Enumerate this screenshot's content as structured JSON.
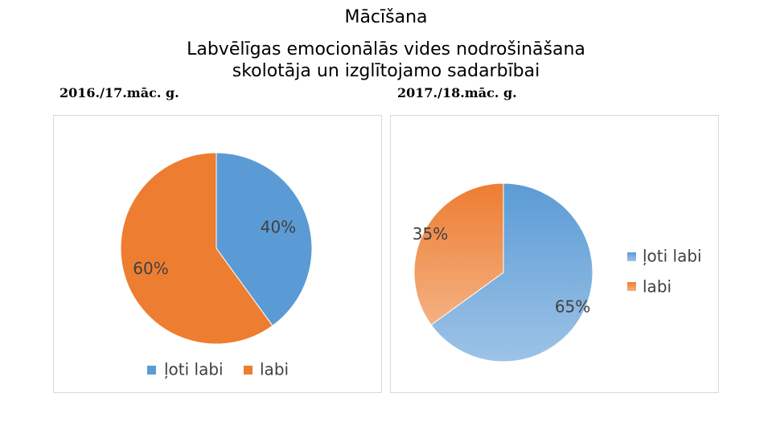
{
  "header": {
    "title": "Mācīšana",
    "subtitle": "Labvēlīgas emocionālās vides nodrošināšana skolotāja un izglītojamo sadarbībai"
  },
  "colors": {
    "blue": "#5b9bd5",
    "orange": "#ed7d31",
    "blue_light": "#9dc3e6",
    "orange_light": "#f4b183"
  },
  "chart_data": [
    {
      "type": "pie",
      "title": "2016./17.māc. g.",
      "categories": [
        "ļoti labi",
        "labi"
      ],
      "values": [
        40,
        60
      ],
      "labels": [
        "40%",
        "60%"
      ],
      "legend_position": "bottom"
    },
    {
      "type": "pie",
      "title": "2017./18.māc. g.",
      "categories": [
        "ļoti labi",
        "labi"
      ],
      "values": [
        65,
        35
      ],
      "labels": [
        "65%",
        "35%"
      ],
      "legend_position": "right"
    }
  ]
}
